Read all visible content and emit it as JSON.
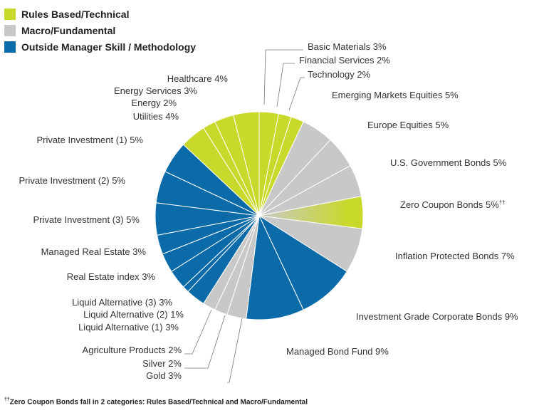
{
  "legend": [
    {
      "label": "Rules Based/Technical",
      "color": "#c8d92b"
    },
    {
      "label": "Macro/Fundamental",
      "color": "#c8c8c8"
    },
    {
      "label": "Outside Manager Skill / Methodology",
      "color": "#0b6aa8"
    }
  ],
  "footnote": {
    "marker": "††",
    "text": "Zero Coupon Bonds fall in 2 categories: Rules Based/Technical and Macro/Fundamental"
  },
  "chart_data": {
    "type": "pie",
    "slices": [
      {
        "label": "Basic Materials 3%",
        "value": 3,
        "category": "Rules Based/Technical",
        "color": "#c8d92b"
      },
      {
        "label": "Financial Services 2%",
        "value": 2,
        "category": "Rules Based/Technical",
        "color": "#c8d92b"
      },
      {
        "label": "Technology 2%",
        "value": 2,
        "category": "Rules Based/Technical",
        "color": "#c8d92b"
      },
      {
        "label": "Emerging Markets Equities 5%",
        "value": 5,
        "category": "Macro/Fundamental",
        "color": "#c8c8c8"
      },
      {
        "label": "Europe Equities 5%",
        "value": 5,
        "category": "Macro/Fundamental",
        "color": "#c8c8c8"
      },
      {
        "label": "U.S. Government Bonds 5%",
        "value": 5,
        "category": "Macro/Fundamental",
        "color": "#c8c8c8"
      },
      {
        "label": "Zero Coupon Bonds 5%",
        "marker": "††",
        "value": 5,
        "category": "Rules Based/Technical and Macro/Fundamental",
        "color": "#c8d92b",
        "color2": "#c8c8c8"
      },
      {
        "label": "Inflation Protected Bonds 7%",
        "value": 7,
        "category": "Macro/Fundamental",
        "color": "#c8c8c8"
      },
      {
        "label": "Investment Grade Corporate Bonds 9%",
        "value": 9,
        "category": "Outside Manager Skill / Methodology",
        "color": "#0b6aa8"
      },
      {
        "label": "Managed Bond Fund 9%",
        "value": 9,
        "category": "Outside Manager Skill / Methodology",
        "color": "#0b6aa8"
      },
      {
        "label": "Gold 3%",
        "value": 3,
        "category": "Macro/Fundamental",
        "color": "#c8c8c8"
      },
      {
        "label": "Silver 2%",
        "value": 2,
        "category": "Macro/Fundamental",
        "color": "#c8c8c8"
      },
      {
        "label": "Agriculture Products 2%",
        "value": 2,
        "category": "Macro/Fundamental",
        "color": "#c8c8c8"
      },
      {
        "label": "Liquid Alternative (1) 3%",
        "value": 3,
        "category": "Outside Manager Skill / Methodology",
        "color": "#0b6aa8"
      },
      {
        "label": "Liquid Alternative (2) 1%",
        "value": 1,
        "category": "Outside Manager Skill / Methodology",
        "color": "#0b6aa8"
      },
      {
        "label": "Liquid Alternative (3) 3%",
        "value": 3,
        "category": "Outside Manager Skill / Methodology",
        "color": "#0b6aa8"
      },
      {
        "label": "Real Estate index 3%",
        "value": 3,
        "category": "Outside Manager Skill / Methodology",
        "color": "#0b6aa8"
      },
      {
        "label": "Managed Real Estate 3%",
        "value": 3,
        "category": "Outside Manager Skill / Methodology",
        "color": "#0b6aa8"
      },
      {
        "label": "Private Investment (3) 5%",
        "value": 5,
        "category": "Outside Manager Skill / Methodology",
        "color": "#0b6aa8"
      },
      {
        "label": "Private Investment (2) 5%",
        "value": 5,
        "category": "Outside Manager Skill / Methodology",
        "color": "#0b6aa8"
      },
      {
        "label": "Private Investment (1) 5%",
        "value": 5,
        "category": "Outside Manager Skill / Methodology",
        "color": "#0b6aa8"
      },
      {
        "label": "Utilities 4%",
        "value": 4,
        "category": "Rules Based/Technical",
        "color": "#c8d92b"
      },
      {
        "label": "Energy 2%",
        "value": 2,
        "category": "Rules Based/Technical",
        "color": "#c8d92b"
      },
      {
        "label": "Energy Services 3%",
        "value": 3,
        "category": "Rules Based/Technical",
        "color": "#c8d92b"
      },
      {
        "label": "Healthcare 4%",
        "value": 4,
        "category": "Rules Based/Technical",
        "color": "#c8d92b"
      }
    ]
  }
}
